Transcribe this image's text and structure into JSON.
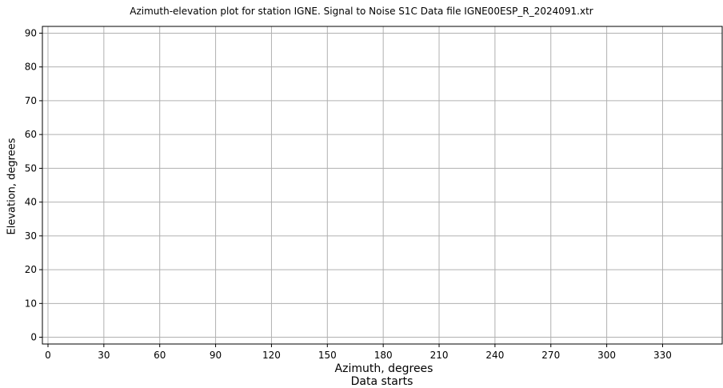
{
  "chart_data": {
    "type": "scatter",
    "title": "Azimuth-elevation plot for station IGNE.    Signal to Noise S1C    Data file IGNE00ESP_R_2024091.xtr",
    "xlabel": "Azimuth, degrees",
    "note": "Data starts",
    "ylabel": "Elevation, degrees",
    "xlim": [
      -3,
      362
    ],
    "ylim": [
      -2,
      92
    ],
    "xticks": [
      0,
      30,
      60,
      90,
      120,
      150,
      180,
      210,
      240,
      270,
      300,
      330
    ],
    "yticks": [
      0,
      10,
      20,
      30,
      40,
      50,
      60,
      70,
      80,
      90
    ],
    "grid": true,
    "series": []
  }
}
